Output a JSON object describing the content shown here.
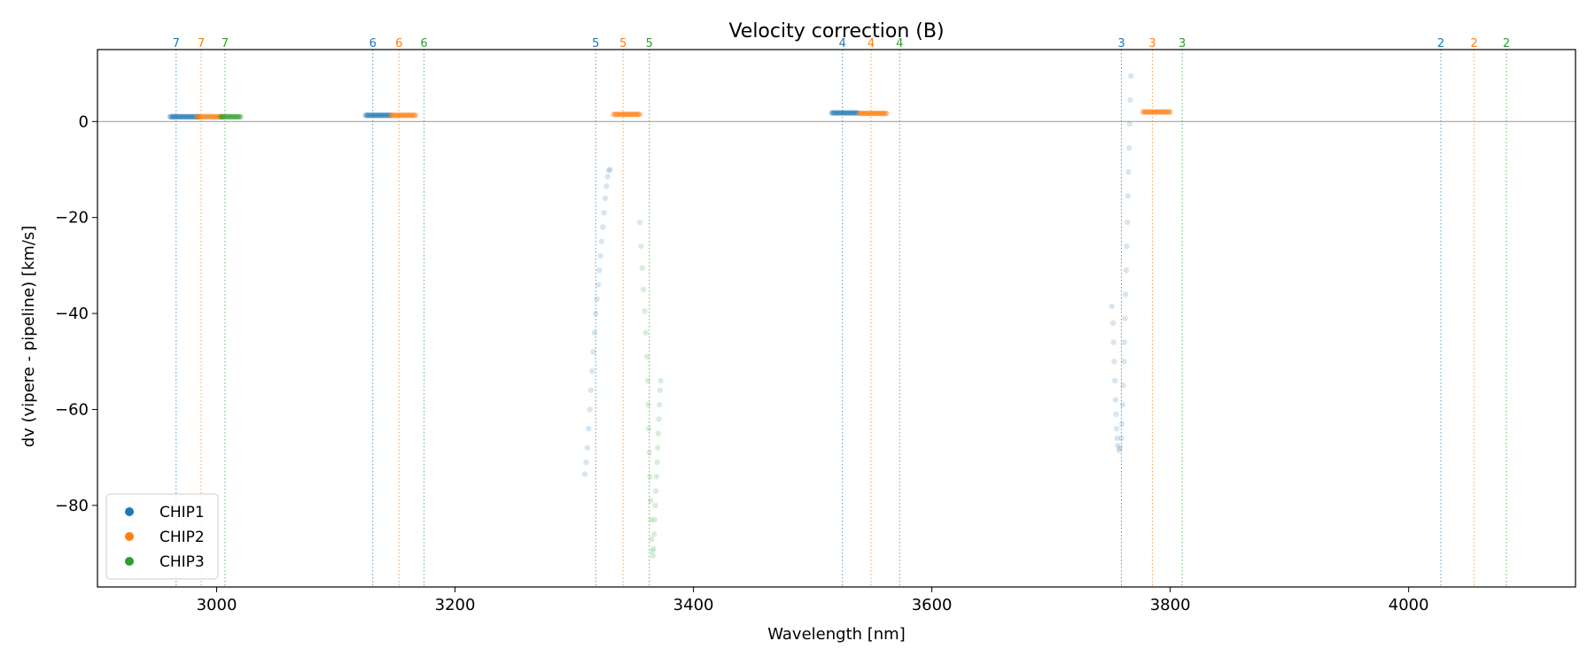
{
  "chart_data": {
    "type": "scatter",
    "title": "Velocity correction (B)",
    "xlabel": "Wavelength [nm]",
    "ylabel": "dv (vipere - pipeline) [km/s]",
    "xlim": [
      2900,
      4140
    ],
    "ylim": [
      -97,
      15
    ],
    "xticks": [
      3000,
      3200,
      3400,
      3600,
      3800,
      4000
    ],
    "yticks": [
      0,
      -20,
      -40,
      -60,
      -80
    ],
    "zero_line": 0,
    "colors": {
      "CHIP1": "#1f77b4",
      "CHIP2": "#ff7f0e",
      "CHIP3": "#2ca02c"
    },
    "legend": {
      "location": "lower-left",
      "entries": [
        "CHIP1",
        "CHIP2",
        "CHIP3"
      ]
    },
    "order_markers": [
      {
        "order": "7",
        "chip": "CHIP1",
        "x": 2966
      },
      {
        "order": "7",
        "chip": "CHIP2",
        "x": 2987
      },
      {
        "order": "7",
        "chip": "CHIP3",
        "x": 3007
      },
      {
        "order": "6",
        "chip": "CHIP1",
        "x": 3131
      },
      {
        "order": "6",
        "chip": "CHIP2",
        "x": 3153
      },
      {
        "order": "6",
        "chip": "CHIP3",
        "x": 3174
      },
      {
        "order": "5",
        "chip": "CHIP1",
        "x": 3318
      },
      {
        "order": "5",
        "chip": "CHIP2",
        "x": 3341
      },
      {
        "order": "5",
        "chip": "CHIP3",
        "x": 3363
      },
      {
        "order": "4",
        "chip": "CHIP1",
        "x": 3525
      },
      {
        "order": "4",
        "chip": "CHIP2",
        "x": 3549
      },
      {
        "order": "4",
        "chip": "CHIP3",
        "x": 3573
      },
      {
        "order": "3",
        "chip": "CHIP1",
        "x": 3759
      },
      {
        "order": "3",
        "chip": "CHIP2",
        "x": 3785
      },
      {
        "order": "3",
        "chip": "CHIP3",
        "x": 3810
      },
      {
        "order": "2",
        "chip": "CHIP1",
        "x": 4027
      },
      {
        "order": "2",
        "chip": "CHIP2",
        "x": 4055
      },
      {
        "order": "2",
        "chip": "CHIP3",
        "x": 4082
      }
    ],
    "series": [
      {
        "name": "CHIP1",
        "segments": [
          {
            "type": "flat",
            "x0": 2961,
            "x1": 2985,
            "y": 1.0
          },
          {
            "type": "flat",
            "x0": 3125,
            "x1": 3146,
            "y": 1.3
          },
          {
            "type": "curve",
            "points": [
              [
                3309,
                -73.5
              ],
              [
                3310,
                -71
              ],
              [
                3311,
                -68
              ],
              [
                3312,
                -64
              ],
              [
                3313,
                -60
              ],
              [
                3314,
                -56
              ],
              [
                3315,
                -52
              ],
              [
                3316,
                -48
              ],
              [
                3317,
                -44
              ],
              [
                3318,
                -40
              ],
              [
                3319,
                -37
              ],
              [
                3320,
                -34
              ],
              [
                3321,
                -31
              ],
              [
                3322,
                -28
              ],
              [
                3323,
                -25
              ],
              [
                3324,
                -22
              ],
              [
                3325,
                -19
              ],
              [
                3326,
                -16
              ],
              [
                3327,
                -13.5
              ],
              [
                3328,
                -11.5
              ],
              [
                3329,
                -10.2
              ],
              [
                3330,
                -10
              ]
            ]
          },
          {
            "type": "flat",
            "x0": 3516,
            "x1": 3538,
            "y": 1.8
          },
          {
            "type": "curve",
            "points": [
              [
                3751,
                -38.5
              ],
              [
                3752,
                -42
              ],
              [
                3752.5,
                -46
              ],
              [
                3753,
                -50
              ],
              [
                3753.5,
                -54
              ],
              [
                3754,
                -58
              ],
              [
                3754.5,
                -61
              ],
              [
                3755,
                -64
              ],
              [
                3755.5,
                -66
              ],
              [
                3756,
                -67.5
              ],
              [
                3757,
                -68.5
              ],
              [
                3758,
                -68
              ],
              [
                3759,
                -66
              ],
              [
                3759.5,
                -63
              ],
              [
                3760,
                -59
              ],
              [
                3760.5,
                -55
              ],
              [
                3761,
                -50
              ],
              [
                3761.5,
                -46
              ],
              [
                3762,
                -41
              ],
              [
                3762.5,
                -36
              ],
              [
                3763,
                -31
              ],
              [
                3763.5,
                -26
              ],
              [
                3764,
                -21
              ],
              [
                3764.5,
                -15.5
              ],
              [
                3765,
                -10.5
              ],
              [
                3765.5,
                -5.5
              ],
              [
                3766,
                -0.5
              ],
              [
                3766.5,
                4.5
              ],
              [
                3767,
                9.5
              ]
            ]
          }
        ]
      },
      {
        "name": "CHIP2",
        "segments": [
          {
            "type": "flat",
            "x0": 2983,
            "x1": 3005,
            "y": 1.0
          },
          {
            "type": "flat",
            "x0": 3146,
            "x1": 3167,
            "y": 1.3
          },
          {
            "type": "flat",
            "x0": 3333,
            "x1": 3355,
            "y": 1.5
          },
          {
            "type": "flat",
            "x0": 3539,
            "x1": 3562,
            "y": 1.7
          },
          {
            "type": "flat",
            "x0": 3777,
            "x1": 3800,
            "y": 2.0
          }
        ]
      },
      {
        "name": "CHIP3",
        "segments": [
          {
            "type": "flat",
            "x0": 3003,
            "x1": 3020,
            "y": 1.0
          },
          {
            "type": "curve",
            "points": [
              [
                3355,
                -21
              ],
              [
                3356,
                -26
              ],
              [
                3357,
                -30.5
              ],
              [
                3358,
                -35
              ],
              [
                3359,
                -39.5
              ],
              [
                3360,
                -44
              ],
              [
                3361,
                -49
              ],
              [
                3361.5,
                -54
              ],
              [
                3362,
                -59
              ],
              [
                3362.5,
                -64
              ],
              [
                3363,
                -69
              ],
              [
                3363.5,
                -74
              ],
              [
                3364,
                -79
              ],
              [
                3364.5,
                -83
              ],
              [
                3365,
                -87
              ],
              [
                3365.5,
                -89.5
              ],
              [
                3366,
                -90.5
              ],
              [
                3366.5,
                -89
              ],
              [
                3367,
                -86
              ],
              [
                3367.5,
                -83
              ],
              [
                3368,
                -80
              ],
              [
                3368.5,
                -77
              ],
              [
                3369,
                -74
              ],
              [
                3369.5,
                -71
              ],
              [
                3370,
                -68
              ],
              [
                3370.5,
                -65
              ],
              [
                3371,
                -62
              ],
              [
                3371.5,
                -59
              ],
              [
                3372,
                -56
              ],
              [
                3372.5,
                -54
              ]
            ]
          }
        ]
      }
    ]
  }
}
